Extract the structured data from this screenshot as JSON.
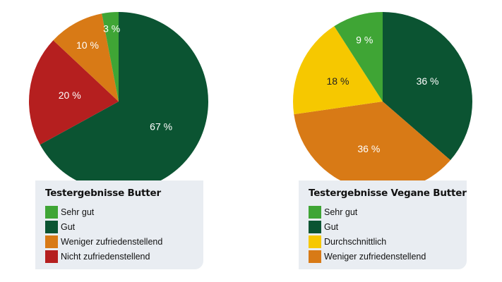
{
  "chart_data": [
    {
      "type": "pie",
      "title": "Testergebnisse Butter",
      "categories": [
        "Gut",
        "Nicht zufriedenstellend",
        "Weniger zufriedenstellend",
        "Sehr gut"
      ],
      "values": [
        67,
        20,
        10,
        3
      ],
      "labels": [
        "67 %",
        "20 %",
        "10 %",
        "3 %"
      ],
      "colors": [
        "#0b5432",
        "#b51f1f",
        "#d87a16",
        "#3fa535"
      ],
      "legend": [
        {
          "label": "Sehr gut",
          "color": "#3fa535"
        },
        {
          "label": "Gut",
          "color": "#0b5432"
        },
        {
          "label": "Weniger zufriedenstellend",
          "color": "#d87a16"
        },
        {
          "label": "Nicht zufriedenstellend",
          "color": "#b51f1f"
        }
      ],
      "legend_position": "bottom"
    },
    {
      "type": "pie",
      "title": "Testergebnisse Vegane Butter",
      "categories": [
        "Gut",
        "Weniger zufriedenstellend",
        "Durchschnittlich",
        "Sehr gut"
      ],
      "values": [
        36,
        36,
        18,
        9
      ],
      "labels": [
        "36 %",
        "36 %",
        "18 %",
        "9 %"
      ],
      "colors": [
        "#0b5432",
        "#d87a16",
        "#f6c800",
        "#3fa535"
      ],
      "legend": [
        {
          "label": "Sehr gut",
          "color": "#3fa535"
        },
        {
          "label": "Gut",
          "color": "#0b5432"
        },
        {
          "label": "Durchschnittlich",
          "color": "#f6c800"
        },
        {
          "label": "Weniger zufriedenstellend",
          "color": "#d87a16"
        }
      ],
      "legend_position": "bottom"
    }
  ]
}
